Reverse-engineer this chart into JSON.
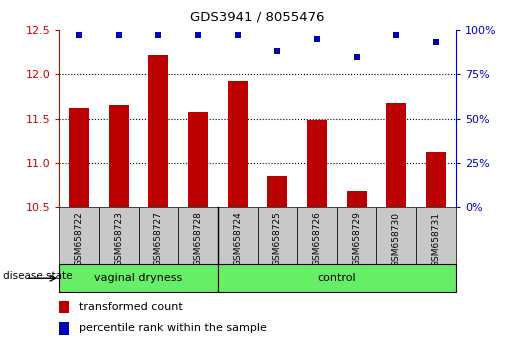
{
  "title": "GDS3941 / 8055476",
  "samples": [
    "GSM658722",
    "GSM658723",
    "GSM658727",
    "GSM658728",
    "GSM658724",
    "GSM658725",
    "GSM658726",
    "GSM658729",
    "GSM658730",
    "GSM658731"
  ],
  "red_values": [
    11.62,
    11.65,
    12.22,
    11.58,
    11.92,
    10.85,
    11.48,
    10.68,
    11.68,
    11.12
  ],
  "blue_values": [
    97,
    97,
    97,
    97,
    97,
    88,
    95,
    85,
    97,
    93
  ],
  "ylim_left": [
    10.5,
    12.5
  ],
  "ylim_right": [
    0,
    100
  ],
  "yticks_left": [
    10.5,
    11.0,
    11.5,
    12.0,
    12.5
  ],
  "yticks_right": [
    0,
    25,
    50,
    75,
    100
  ],
  "bar_color": "#bb0000",
  "dot_color": "#0000bb",
  "bar_width": 0.5,
  "tick_area_bg": "#c8c8c8",
  "left_axis_color": "#cc0000",
  "right_axis_color": "#0000cc",
  "disease_state_label": "disease state",
  "legend_bar_label": "transformed count",
  "legend_dot_label": "percentile rank within the sample",
  "group_green": "#66ee66",
  "groups": [
    {
      "label": "vaginal dryness",
      "start": 0,
      "end": 3
    },
    {
      "label": "control",
      "start": 4,
      "end": 9
    }
  ]
}
